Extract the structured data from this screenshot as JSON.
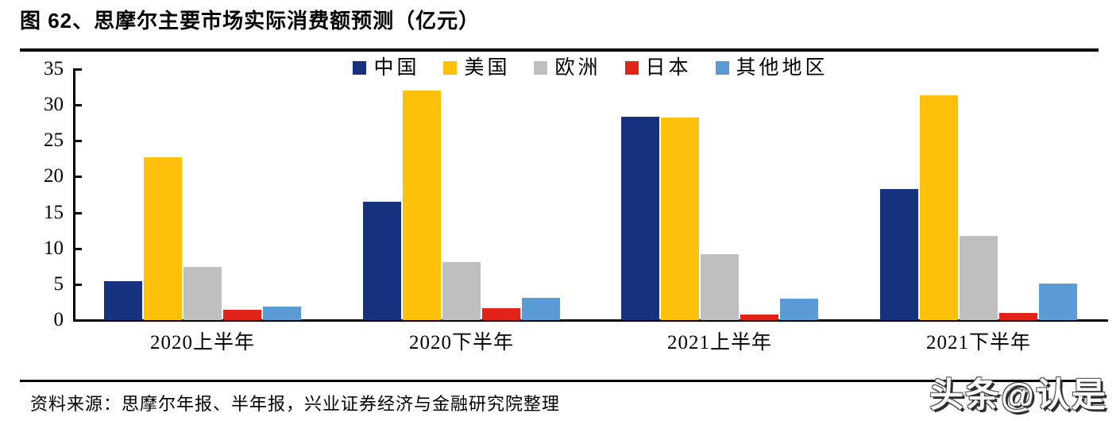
{
  "title": "图 62、思摩尔主要市场实际消费额预测（亿元）",
  "source": "资料来源：思摩尔年报、半年报，兴业证券经济与金融研究院整理",
  "watermark": "头条@认是",
  "colors": {
    "axis": "#000000",
    "title_rule": "#000000",
    "background": "#ffffff",
    "china": "#16317D",
    "us": "#FEC10B",
    "europe": "#BFBFBF",
    "japan": "#E2231A",
    "others": "#5B9BD5"
  },
  "chart_data": {
    "type": "bar",
    "title": "图 62、思摩尔主要市场实际消费额预测（亿元）",
    "xlabel": "",
    "ylabel": "",
    "categories": [
      "2020上半年",
      "2020下半年",
      "2021上半年",
      "2021下半年"
    ],
    "series": [
      {
        "name": "中国",
        "color": "#16317D",
        "values": [
          5.4,
          16.5,
          28.4,
          18.3
        ]
      },
      {
        "name": "美国",
        "color": "#FEC10B",
        "values": [
          22.7,
          32.0,
          28.2,
          31.4
        ]
      },
      {
        "name": "欧洲",
        "color": "#BFBFBF",
        "values": [
          7.4,
          8.1,
          9.2,
          11.7
        ]
      },
      {
        "name": "日本",
        "color": "#E2231A",
        "values": [
          1.4,
          1.7,
          0.8,
          1.0
        ]
      },
      {
        "name": "其他地区",
        "color": "#5B9BD5",
        "values": [
          1.9,
          3.1,
          3.0,
          5.1
        ]
      }
    ],
    "ylim": [
      0,
      35
    ],
    "yticks": [
      0,
      5,
      10,
      15,
      20,
      25,
      30,
      35
    ],
    "legend_position": "top-center",
    "grid": false
  }
}
